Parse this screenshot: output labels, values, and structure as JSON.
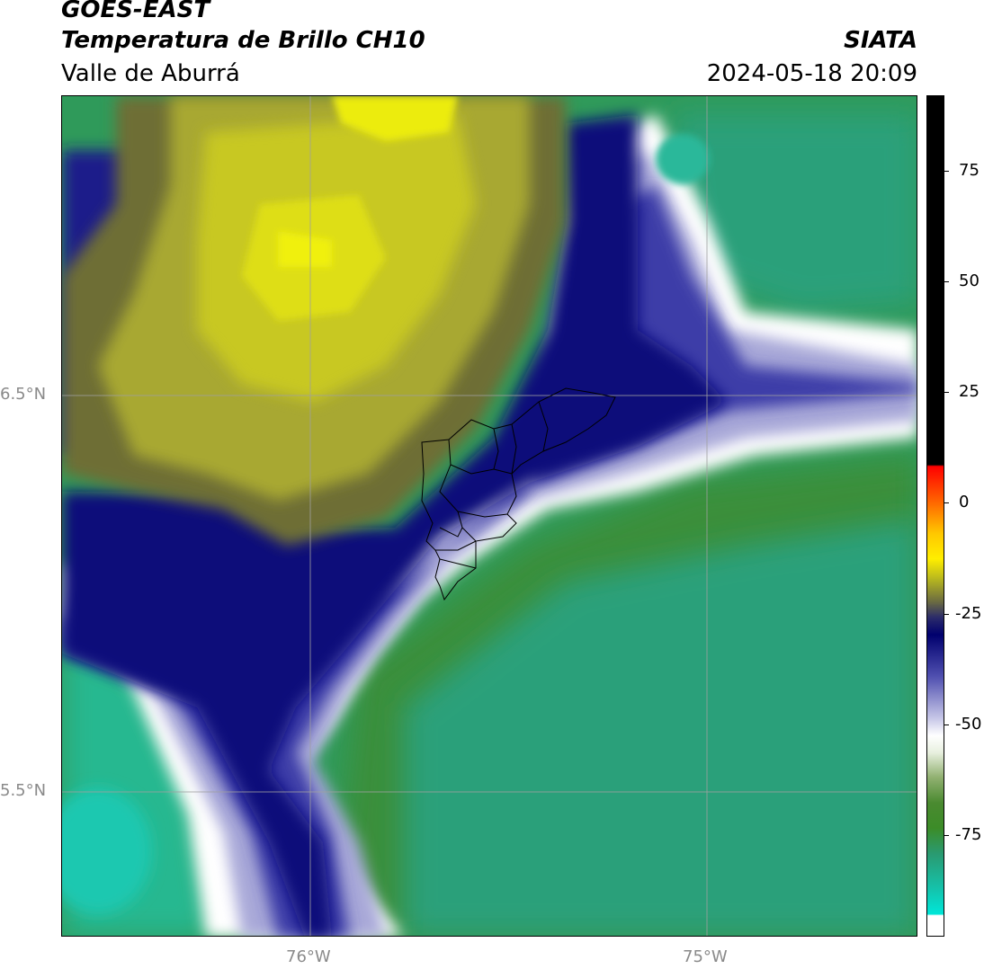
{
  "header": {
    "satellite": "GOES-EAST",
    "product": "Temperatura de Brillo CH10",
    "region": "Valle de Aburrá",
    "organization": "SIATA",
    "timestamp": "2024-05-18 20:09"
  },
  "map": {
    "lat_labels": [
      {
        "id": "lat-6.5",
        "text": "6.5°N"
      },
      {
        "id": "lat-5.5",
        "text": "5.5°N"
      }
    ],
    "lon_labels": [
      {
        "id": "lon-76",
        "text": "76°W"
      },
      {
        "id": "lon-75",
        "text": "75°W"
      }
    ],
    "gridline_color": "#a0a0a0",
    "boundary_color": "#000000",
    "palette": {
      "cold_cyan": "#1fc8b8",
      "teal_green": "#27a67c",
      "green": "#3a8f3a",
      "light_green": "#8fbf6a",
      "white": "#ffffff",
      "lavender": "#a8a8d8",
      "blue": "#3c3ca8",
      "navy": "#0a0a7a",
      "olive_dark": "#5a5a3a",
      "olive": "#9a9a30",
      "yellow_olive": "#c8c820",
      "yellow": "#e8e800"
    }
  },
  "colorbar": {
    "ticks": [
      "75",
      "50",
      "25",
      "0",
      "-25",
      "-50",
      "-75"
    ],
    "stops": [
      {
        "color": "#000000",
        "label": "black"
      },
      {
        "color": "#ff0000",
        "label": "red"
      },
      {
        "color": "#ff8c00",
        "label": "orange"
      },
      {
        "color": "#ffe600",
        "label": "yellow"
      },
      {
        "color": "#6e6e2a",
        "label": "olive"
      },
      {
        "color": "#00006e",
        "label": "navy"
      },
      {
        "color": "#ffffff",
        "label": "white"
      },
      {
        "color": "#3c8c28",
        "label": "green"
      },
      {
        "color": "#00e6d8",
        "label": "cyan"
      }
    ]
  }
}
